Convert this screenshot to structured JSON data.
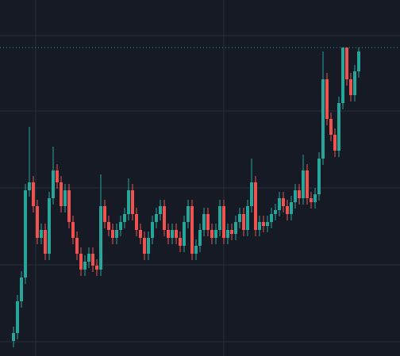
{
  "chart_data": {
    "type": "candlestick",
    "x": [
      0,
      1,
      2,
      3,
      4,
      5,
      6,
      7,
      8,
      9,
      10,
      11,
      12,
      13,
      14,
      15,
      16,
      17,
      18,
      19,
      20,
      21,
      22,
      23,
      24,
      25,
      26,
      27,
      28,
      29,
      30,
      31,
      32,
      33,
      34,
      35,
      36,
      37,
      38,
      39,
      40,
      41,
      42,
      43,
      44,
      45,
      46,
      47,
      48,
      49,
      50,
      51,
      52,
      53,
      54,
      55,
      56,
      57,
      58,
      59,
      60,
      61,
      62,
      63,
      64,
      65,
      66,
      67,
      68,
      69,
      70,
      71,
      72,
      73,
      74,
      75,
      76,
      77,
      78,
      79,
      80,
      81,
      82,
      83,
      84,
      85,
      86,
      87
    ],
    "open": [
      19,
      29,
      69,
      99,
      209,
      219,
      189,
      149,
      159,
      129,
      199,
      234,
      219,
      189,
      209,
      169,
      149,
      129,
      109,
      119,
      129,
      114,
      109,
      189,
      169,
      159,
      149,
      159,
      169,
      179,
      209,
      179,
      159,
      149,
      129,
      149,
      169,
      179,
      189,
      159,
      149,
      159,
      149,
      139,
      169,
      189,
      129,
      139,
      159,
      179,
      159,
      149,
      159,
      189,
      149,
      159,
      154,
      169,
      179,
      159,
      189,
      219,
      159,
      169,
      164,
      169,
      179,
      184,
      199,
      189,
      179,
      194,
      209,
      199,
      234,
      199,
      194,
      204,
      249,
      349,
      299,
      279,
      259,
      319,
      389,
      349,
      329,
      359
    ],
    "high": [
      37,
      77,
      107,
      217,
      289,
      227,
      197,
      167,
      167,
      207,
      264,
      242,
      227,
      217,
      217,
      177,
      157,
      137,
      127,
      137,
      137,
      122,
      229,
      197,
      177,
      167,
      167,
      177,
      187,
      224,
      217,
      187,
      167,
      157,
      157,
      177,
      187,
      197,
      197,
      167,
      167,
      167,
      157,
      177,
      197,
      197,
      147,
      167,
      187,
      187,
      167,
      167,
      197,
      197,
      167,
      167,
      177,
      187,
      187,
      197,
      249,
      227,
      177,
      177,
      177,
      187,
      192,
      207,
      207,
      197,
      202,
      217,
      217,
      254,
      242,
      207,
      212,
      257,
      384,
      357,
      307,
      287,
      327,
      389,
      389,
      357,
      367,
      389
    ],
    "low": [
      11,
      21,
      61,
      91,
      201,
      181,
      141,
      141,
      121,
      121,
      191,
      211,
      181,
      181,
      161,
      141,
      121,
      101,
      101,
      111,
      106,
      101,
      101,
      161,
      151,
      141,
      141,
      151,
      161,
      171,
      171,
      151,
      141,
      121,
      121,
      141,
      161,
      171,
      151,
      141,
      141,
      141,
      131,
      131,
      161,
      121,
      121,
      131,
      151,
      151,
      141,
      141,
      151,
      141,
      141,
      146,
      146,
      161,
      151,
      151,
      181,
      151,
      151,
      156,
      156,
      161,
      171,
      176,
      181,
      171,
      171,
      186,
      191,
      191,
      191,
      186,
      186,
      196,
      241,
      291,
      271,
      251,
      251,
      311,
      341,
      321,
      321,
      351
    ],
    "close": [
      29,
      69,
      99,
      209,
      219,
      189,
      149,
      159,
      129,
      199,
      234,
      219,
      189,
      209,
      169,
      149,
      129,
      109,
      119,
      129,
      114,
      109,
      189,
      169,
      159,
      149,
      159,
      169,
      179,
      209,
      179,
      159,
      149,
      129,
      149,
      169,
      179,
      189,
      159,
      149,
      159,
      149,
      139,
      169,
      189,
      129,
      139,
      159,
      179,
      159,
      149,
      159,
      189,
      149,
      159,
      154,
      169,
      179,
      159,
      189,
      219,
      159,
      169,
      164,
      169,
      179,
      184,
      199,
      189,
      179,
      194,
      209,
      199,
      234,
      199,
      194,
      204,
      249,
      349,
      299,
      279,
      259,
      319,
      389,
      349,
      329,
      359,
      384
    ],
    "up_color": "#26a69a",
    "down_color": "#ef5350",
    "price_line": 389,
    "xlim": [
      -3.4,
      97.4
    ],
    "xticks": [
      5.6,
      53
    ],
    "ylim": [
      0,
      449
    ],
    "yticks": [
      18,
      115,
      212,
      309,
      404
    ],
    "grid": true
  }
}
